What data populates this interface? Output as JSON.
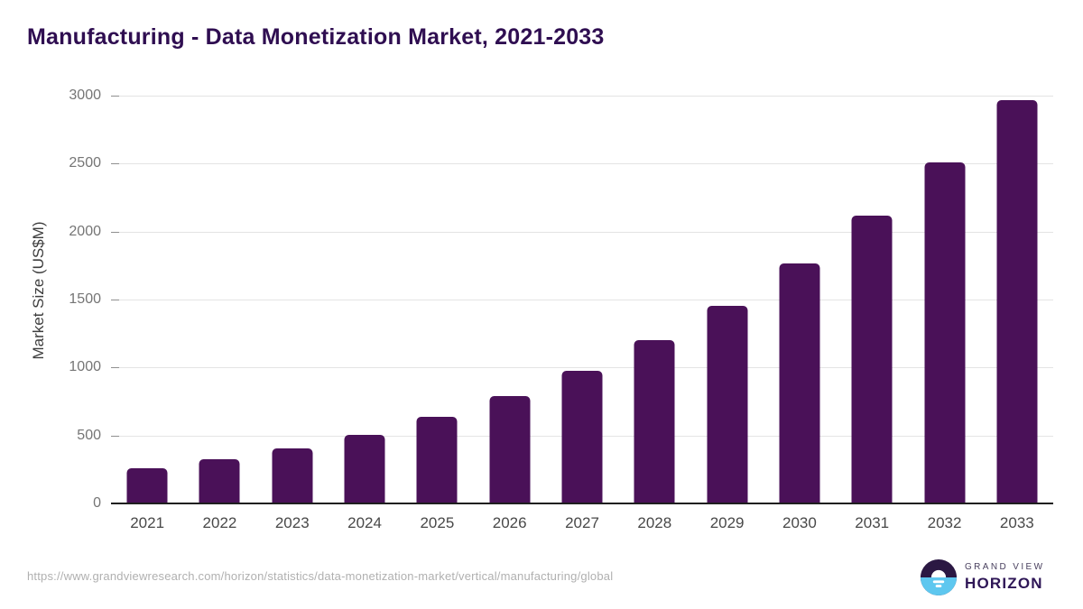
{
  "title": "Manufacturing - Data Monetization Market, 2021-2033",
  "chart_data": {
    "type": "bar",
    "categories": [
      "2021",
      "2022",
      "2023",
      "2024",
      "2025",
      "2026",
      "2027",
      "2028",
      "2029",
      "2030",
      "2031",
      "2032",
      "2033"
    ],
    "values": [
      258,
      324,
      403,
      508,
      635,
      790,
      976,
      1201,
      1456,
      1768,
      2117,
      2510,
      2966
    ],
    "title": "Manufacturing - Data Monetization Market, 2021-2033",
    "xlabel": "",
    "ylabel": "Market Size (US$M)",
    "ylim": [
      0,
      3000
    ],
    "yticks": [
      0,
      500,
      1000,
      1500,
      2000,
      2500,
      3000
    ],
    "grid": true,
    "legend": "none",
    "bar_color": "#4a1158"
  },
  "footer": {
    "source_url": "https://www.grandviewresearch.com/horizon/statistics/data-monetization-market/vertical/manufacturing/global",
    "logo": {
      "line1": "GRAND VIEW",
      "line2": "HORIZON"
    }
  },
  "colors": {
    "title_text": "#2f0e51",
    "bar": "#4a1158",
    "gridline": "#e4e4e4",
    "axis_line": "#1f1f1f",
    "logo_dark": "#2b1843",
    "logo_blue": "#5ec7ef"
  }
}
